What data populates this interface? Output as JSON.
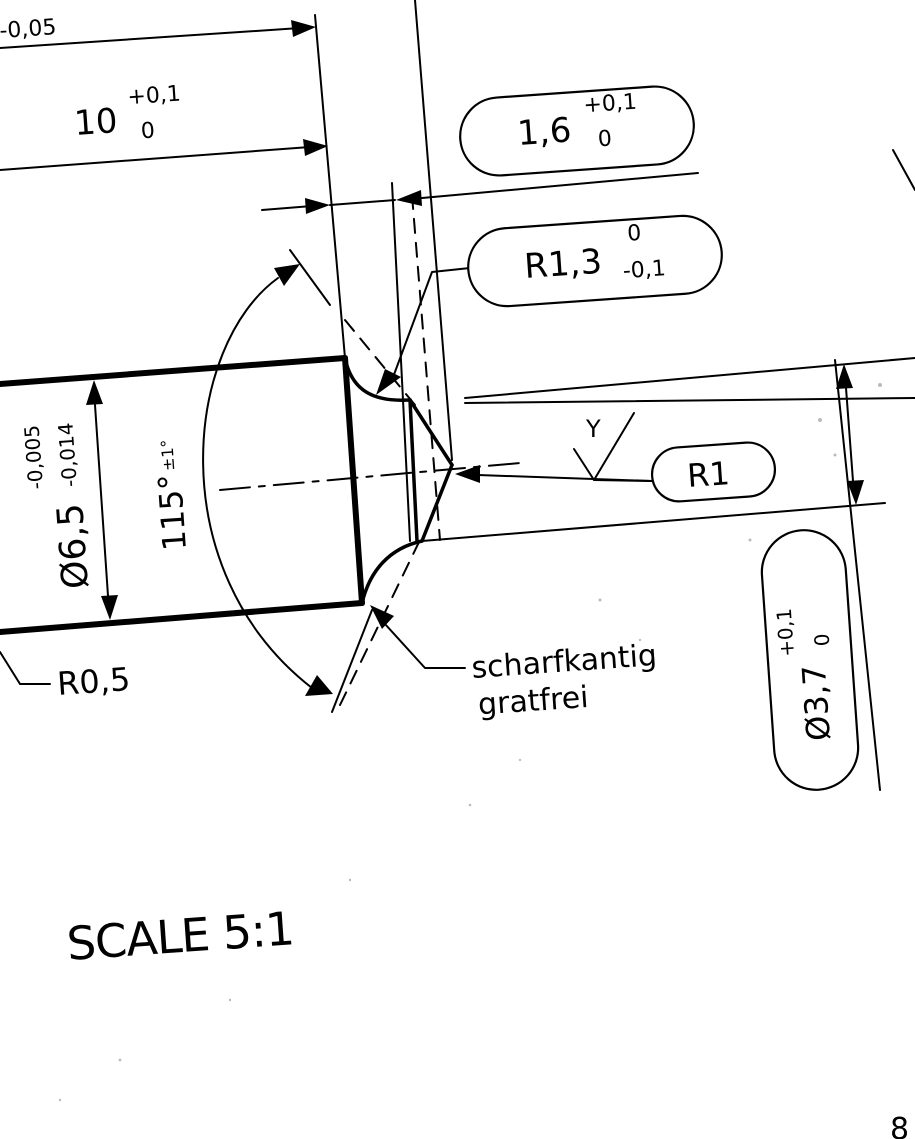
{
  "dims": {
    "top_partial_tol": "-0,05",
    "len10": {
      "nominal": "10",
      "upper": "+0,1",
      "lower": "0"
    },
    "len16": {
      "nominal": "1,6",
      "upper": "+0,1",
      "lower": "0"
    },
    "r13": {
      "nominal": "R1,3",
      "upper": "0",
      "lower": "-0,1"
    },
    "r1": "R1",
    "surface_symbol": "Y",
    "dia65": {
      "nominal": "Ø6,5",
      "upper": "-0,005",
      "lower": "-0,014"
    },
    "angle": {
      "nominal": "115°",
      "tol": "±1°"
    },
    "r05": "R0,5",
    "dia37": {
      "nominal": "Ø3,7",
      "upper": "+0,1",
      "lower": "0"
    }
  },
  "note": {
    "line1": "scharfkantig",
    "line2": "gratfrei"
  },
  "scale": "SCALE 5:1",
  "corner_partial": "8"
}
